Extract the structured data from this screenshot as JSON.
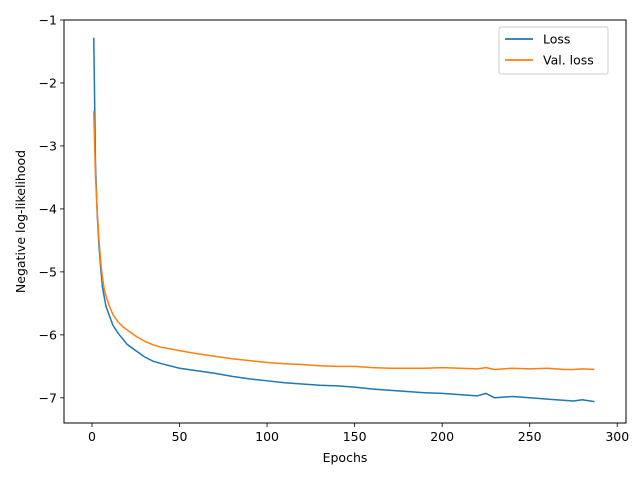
{
  "chart_data": {
    "type": "line",
    "xlabel": "Epochs",
    "ylabel": "Negative log-likelihood",
    "xlim": [
      -16,
      305
    ],
    "ylim": [
      -7.4,
      -1.0
    ],
    "xticks": [
      0,
      50,
      100,
      150,
      200,
      250,
      300
    ],
    "yticks": [
      -7,
      -6,
      -5,
      -4,
      -3,
      -2,
      -1
    ],
    "grid": false,
    "legend_position": "top-right",
    "x": [
      1,
      2,
      3,
      4,
      5,
      6,
      7,
      8,
      10,
      12,
      15,
      18,
      20,
      25,
      30,
      35,
      40,
      50,
      60,
      70,
      80,
      90,
      100,
      110,
      120,
      130,
      140,
      150,
      160,
      170,
      180,
      190,
      200,
      210,
      220,
      225,
      230,
      240,
      250,
      260,
      270,
      275,
      280,
      287
    ],
    "series": [
      {
        "name": "Loss",
        "color": "#1f77b4",
        "values": [
          -1.28,
          -3.3,
          -4.1,
          -4.6,
          -4.95,
          -5.25,
          -5.4,
          -5.55,
          -5.7,
          -5.85,
          -5.98,
          -6.08,
          -6.15,
          -6.25,
          -6.35,
          -6.42,
          -6.46,
          -6.53,
          -6.57,
          -6.61,
          -6.66,
          -6.7,
          -6.73,
          -6.76,
          -6.78,
          -6.8,
          -6.81,
          -6.83,
          -6.86,
          -6.88,
          -6.9,
          -6.92,
          -6.93,
          -6.95,
          -6.97,
          -6.93,
          -7.0,
          -6.98,
          -7.0,
          -7.02,
          -7.04,
          -7.05,
          -7.03,
          -7.06
        ]
      },
      {
        "name": "Val. loss",
        "color": "#ff7f0e",
        "values": [
          -2.45,
          -3.5,
          -4.05,
          -4.5,
          -4.85,
          -5.1,
          -5.28,
          -5.38,
          -5.55,
          -5.68,
          -5.8,
          -5.88,
          -5.92,
          -6.02,
          -6.1,
          -6.16,
          -6.2,
          -6.25,
          -6.3,
          -6.34,
          -6.38,
          -6.41,
          -6.44,
          -6.46,
          -6.47,
          -6.49,
          -6.5,
          -6.5,
          -6.52,
          -6.53,
          -6.53,
          -6.53,
          -6.52,
          -6.53,
          -6.54,
          -6.52,
          -6.55,
          -6.53,
          -6.54,
          -6.53,
          -6.55,
          -6.55,
          -6.54,
          -6.55
        ]
      }
    ]
  }
}
